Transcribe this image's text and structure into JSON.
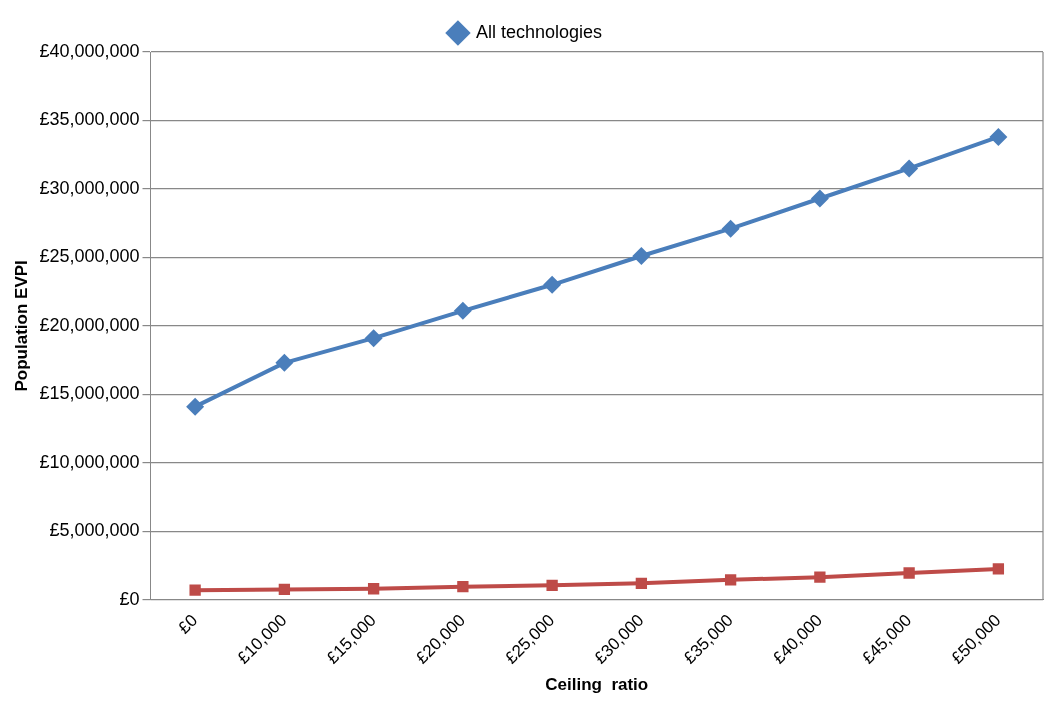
{
  "chart_data": {
    "type": "line",
    "xlabel": "Ceiling  ratio",
    "ylabel": "Population EVPI",
    "categories": [
      "£0",
      "£10,000",
      "£15,000",
      "£20,000",
      "£25,000",
      "£30,000",
      "£35,000",
      "£40,000",
      "£45,000",
      "£50,000"
    ],
    "series": [
      {
        "name": "All technologies",
        "color": "#4a7ebb",
        "marker": "diamond",
        "values": [
          14100000,
          17300000,
          19100000,
          21100000,
          23000000,
          25100000,
          27100000,
          29300000,
          31500000,
          33800000
        ]
      },
      {
        "color": "#be4b48",
        "marker": "square",
        "values": [
          700000,
          750000,
          800000,
          950000,
          1050000,
          1200000,
          1450000,
          1650000,
          1950000,
          2250000
        ]
      }
    ],
    "ylim": [
      0,
      40000000
    ],
    "yticks": [
      {
        "value": 0,
        "label": "£0"
      },
      {
        "value": 5000000,
        "label": "£5,000,000"
      },
      {
        "value": 10000000,
        "label": "£10,000,000"
      },
      {
        "value": 15000000,
        "label": "£15,000,000"
      },
      {
        "value": 20000000,
        "label": "£20,000,000"
      },
      {
        "value": 25000000,
        "label": "£25,000,000"
      },
      {
        "value": 30000000,
        "label": "£30,000,000"
      },
      {
        "value": 35000000,
        "label": "£35,000,000"
      },
      {
        "value": 40000000,
        "label": "£40,000,000"
      }
    ],
    "grid": "y",
    "legend": "top",
    "line_style": "solid"
  }
}
